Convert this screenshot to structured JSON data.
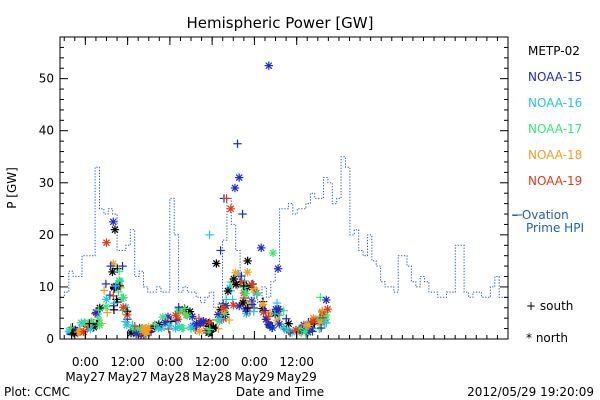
{
  "chart_data": {
    "type": "scatter",
    "title": "Hemispheric Power [GW]",
    "xlabel": "Date and Time",
    "ylabel": "P [GW]",
    "ylim": [
      0,
      58
    ],
    "xlim": [
      -0.3,
      5.0
    ],
    "yticks": [
      0,
      10,
      20,
      30,
      40,
      50
    ],
    "xticks": [
      {
        "x": 0,
        "line1": "0:00",
        "line2": "May27"
      },
      {
        "x": 0.5,
        "line1": "12:00",
        "line2": "May27"
      },
      {
        "x": 1,
        "line1": "0:00",
        "line2": "May28"
      },
      {
        "x": 1.5,
        "line1": "12:00",
        "line2": "May28"
      },
      {
        "x": 2,
        "line1": "0:00",
        "line2": "May29"
      },
      {
        "x": 2.5,
        "line1": "12:00",
        "line2": "May29"
      }
    ],
    "footer_left": "Plot: CCMC",
    "footer_right": "2012/05/29 19:20:09",
    "marker_legend": {
      "south": "+ south",
      "north": "* north"
    },
    "ovation": {
      "label_line1": "– Ovation",
      "label_line2": "Prime HPI",
      "color": "#2060b8",
      "values": [
        8,
        9,
        13,
        12,
        12,
        16,
        16,
        16,
        33,
        25,
        24,
        25,
        24,
        17,
        17,
        18,
        21,
        12,
        13,
        10,
        9,
        9,
        10,
        9,
        9,
        27,
        20,
        9,
        10,
        9,
        9,
        8,
        7,
        8,
        9,
        6,
        7,
        19,
        27,
        22,
        17,
        11,
        8,
        8,
        8,
        7,
        10,
        8,
        11,
        14,
        25,
        25,
        26,
        24,
        25,
        25,
        26,
        28,
        27,
        27,
        31,
        30,
        26,
        27,
        35,
        33,
        20,
        21,
        17,
        16,
        20,
        15,
        14,
        11,
        10,
        10,
        9,
        16,
        16,
        14,
        11,
        10,
        12,
        11,
        9,
        9,
        8,
        8,
        9,
        9,
        18,
        18,
        9,
        8,
        9,
        9,
        8,
        8,
        10,
        12,
        8,
        8
      ]
    },
    "series": [
      {
        "name": "METP-02",
        "color": "#000000"
      },
      {
        "name": "NOAA-15",
        "color": "#1c2cc8"
      },
      {
        "name": "NOAA-16",
        "color": "#20c8e0"
      },
      {
        "name": "NOAA-17",
        "color": "#30e878"
      },
      {
        "name": "NOAA-18",
        "color": "#f0a020"
      },
      {
        "name": "NOAA-19",
        "color": "#e83810"
      }
    ],
    "highlights": [
      {
        "x": 0.25,
        "y": 18.5,
        "series": 5,
        "marker": "north"
      },
      {
        "x": 0.3,
        "y": 14.0,
        "series": 1,
        "marker": "south"
      },
      {
        "x": 0.33,
        "y": 22.5,
        "series": 1,
        "marker": "north"
      },
      {
        "x": 0.35,
        "y": 21.0,
        "series": 0,
        "marker": "north"
      },
      {
        "x": 0.4,
        "y": 13.0,
        "series": 3,
        "marker": "south"
      },
      {
        "x": 0.44,
        "y": 14.0,
        "series": 1,
        "marker": "south"
      },
      {
        "x": 1.47,
        "y": 20.0,
        "series": 2,
        "marker": "south"
      },
      {
        "x": 1.55,
        "y": 14.5,
        "series": 0,
        "marker": "north"
      },
      {
        "x": 1.6,
        "y": 17.0,
        "series": 1,
        "marker": "south"
      },
      {
        "x": 1.64,
        "y": 27.0,
        "series": 1,
        "marker": "south"
      },
      {
        "x": 1.67,
        "y": 27.0,
        "series": 5,
        "marker": "south"
      },
      {
        "x": 1.72,
        "y": 25.0,
        "series": 5,
        "marker": "north"
      },
      {
        "x": 1.77,
        "y": 29.0,
        "series": 1,
        "marker": "north"
      },
      {
        "x": 1.8,
        "y": 37.5,
        "series": 1,
        "marker": "south"
      },
      {
        "x": 1.82,
        "y": 31.0,
        "series": 1,
        "marker": "north"
      },
      {
        "x": 1.86,
        "y": 24.0,
        "series": 1,
        "marker": "south"
      },
      {
        "x": 1.92,
        "y": 15.0,
        "series": 0,
        "marker": "north"
      },
      {
        "x": 2.08,
        "y": 17.5,
        "series": 1,
        "marker": "north"
      },
      {
        "x": 2.17,
        "y": 52.5,
        "series": 1,
        "marker": "north"
      },
      {
        "x": 2.22,
        "y": 16.5,
        "series": 3,
        "marker": "north"
      },
      {
        "x": 2.28,
        "y": 13.5,
        "series": 1,
        "marker": "north"
      },
      {
        "x": 2.78,
        "y": 8.0,
        "series": 3,
        "marker": "south"
      },
      {
        "x": 2.85,
        "y": 7.5,
        "series": 1,
        "marker": "north"
      }
    ]
  }
}
